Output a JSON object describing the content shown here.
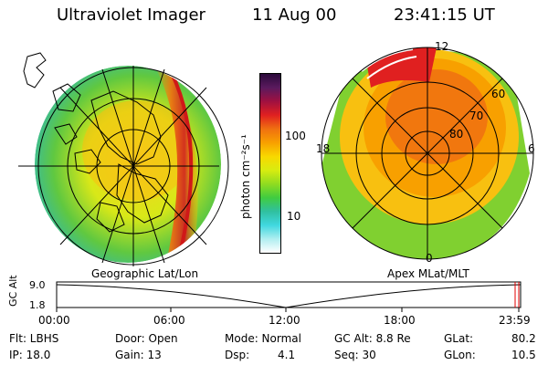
{
  "header": {
    "instrument": "Ultraviolet Imager",
    "date": "11 Aug 00",
    "time": "23:41:15 UT"
  },
  "left_panel": {
    "caption": "Geographic Lat/Lon"
  },
  "right_panel": {
    "caption": "Apex MLat/MLT",
    "mlt_labels": {
      "top": "12",
      "left": "18",
      "right": "6",
      "bottom": "0"
    },
    "lat_labels": [
      "60",
      "70",
      "80"
    ]
  },
  "colorbar": {
    "unit_label": "photon cm⁻²s⁻¹",
    "ticks": [
      "100",
      "10"
    ],
    "colors": [
      "#2b0a3a",
      "#5a1a5e",
      "#a01040",
      "#e02020",
      "#f07010",
      "#f8a000",
      "#f8d800",
      "#d8ec10",
      "#90dc20",
      "#40cc40",
      "#30c0a0",
      "#40d8e0",
      "#b0eef0",
      "#ffffff"
    ]
  },
  "timeline": {
    "ylabel": "GC Alt",
    "y_top": "9.0",
    "y_bottom": "1.8",
    "x_ticks": [
      "00:00",
      "06:00",
      "12:00",
      "18:00",
      "23:59"
    ]
  },
  "footer": {
    "filter": "Flt: LBHS",
    "ip": "IP: 18.0",
    "door": "Door: Open",
    "gain": "Gain: 13",
    "mode": "Mode: Normal",
    "dsp_label": "Dsp:",
    "dsp_value": "4.1",
    "gc_alt": "GC Alt: 8.8 Re",
    "seq": "Seq: 30",
    "glat_label": "GLat:",
    "glat_value": "80.2",
    "glon_label": "GLon:",
    "glon_value": "10.5"
  }
}
